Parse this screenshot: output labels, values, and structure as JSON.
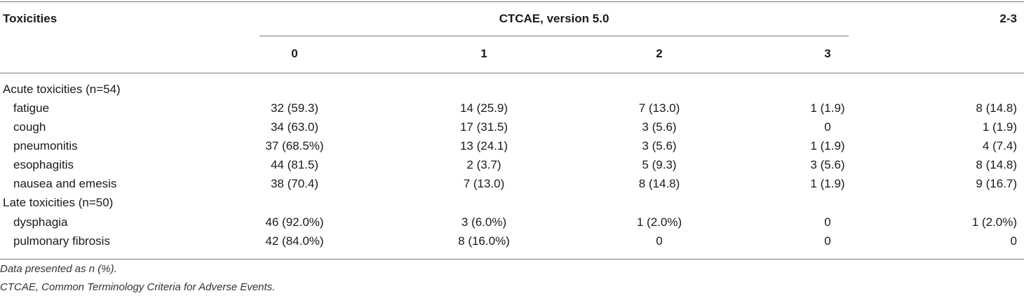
{
  "table": {
    "header": {
      "toxicities": "Toxicities",
      "group": "CTCAE, version 5.0",
      "last_col": "2-3",
      "grades": [
        "0",
        "1",
        "2",
        "3"
      ]
    },
    "sections": [
      {
        "title": "Acute toxicities (n=54)",
        "rows": [
          {
            "label": "fatigue",
            "values": [
              "32 (59.3)",
              "14 (25.9)",
              "7 (13.0)",
              "1 (1.9)",
              "8 (14.8)"
            ]
          },
          {
            "label": "cough",
            "values": [
              "34 (63.0)",
              "17 (31.5)",
              "3 (5.6)",
              "0",
              "1 (1.9)"
            ]
          },
          {
            "label": "pneumonitis",
            "values": [
              "37 (68.5%)",
              "13 (24.1)",
              "3 (5.6)",
              "1 (1.9)",
              "4 (7.4)"
            ]
          },
          {
            "label": "esophagitis",
            "values": [
              "44 (81.5)",
              "2 (3.7)",
              "5 (9.3)",
              "3 (5.6)",
              "8 (14.8)"
            ]
          },
          {
            "label": "nausea and emesis",
            "values": [
              "38 (70.4)",
              "7 (13.0)",
              "8 (14.8)",
              "1 (1.9)",
              "9 (16.7)"
            ]
          }
        ]
      },
      {
        "title": "Late toxicities (n=50)",
        "rows": [
          {
            "label": "dysphagia",
            "values": [
              "46 (92.0%)",
              "3 (6.0%)",
              "1 (2.0%)",
              "0",
              "1 (2.0%)"
            ]
          },
          {
            "label": "pulmonary fibrosis",
            "values": [
              "42 (84.0%)",
              "8 (16.0%)",
              "0",
              "0",
              "0"
            ]
          }
        ]
      }
    ]
  },
  "footnotes": [
    "Data presented as n (%).",
    "CTCAE, Common Terminology Criteria for Adverse Events."
  ]
}
